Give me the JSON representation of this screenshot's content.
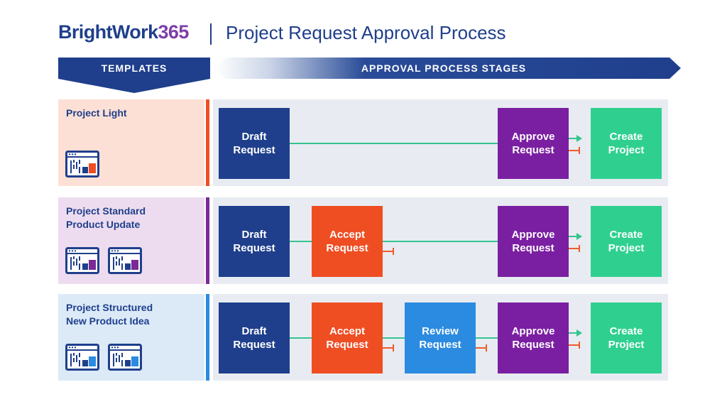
{
  "header": {
    "brand_text": "BrightWork",
    "brand_number": "365",
    "title": "Project Request Approval Process"
  },
  "columns": {
    "templates_label": "TEMPLATES",
    "stages_label": "APPROVAL PROCESS STAGES"
  },
  "colors": {
    "navy": "#1f3f8c",
    "orange": "#ef4e23",
    "blue": "#2b8be0",
    "purple": "#7b1fa2",
    "green": "#2fd08f",
    "connector": "#35c48e",
    "reject": "#ef5a2a"
  },
  "rows": [
    {
      "template": "Project Light",
      "icon_name": "template-window-icon",
      "icon_count": 1,
      "accent": "#ef4e23",
      "cell_bg": "#fde0d5",
      "stages": {
        "draft": "Draft\nRequest",
        "approve": "Approve\nRequest",
        "create": "Create\nProject"
      }
    },
    {
      "template": "Project Standard\nProduct Update",
      "icon_name": "template-window-icon",
      "icon_count": 2,
      "accent": "#7b2a96",
      "cell_bg": "#eddcef",
      "stages": {
        "draft": "Draft\nRequest",
        "accept": "Accept\nRequest",
        "approve": "Approve\nRequest",
        "create": "Create\nProject"
      }
    },
    {
      "template": "Project Structured\nNew Product Idea",
      "icon_name": "template-window-icon",
      "icon_count": 2,
      "accent": "#2b8be0",
      "cell_bg": "#dceaf8",
      "stages": {
        "draft": "Draft\nRequest",
        "accept": "Accept\nRequest",
        "review": "Review\nRequest",
        "approve": "Approve\nRequest",
        "create": "Create\nProject"
      }
    }
  ]
}
